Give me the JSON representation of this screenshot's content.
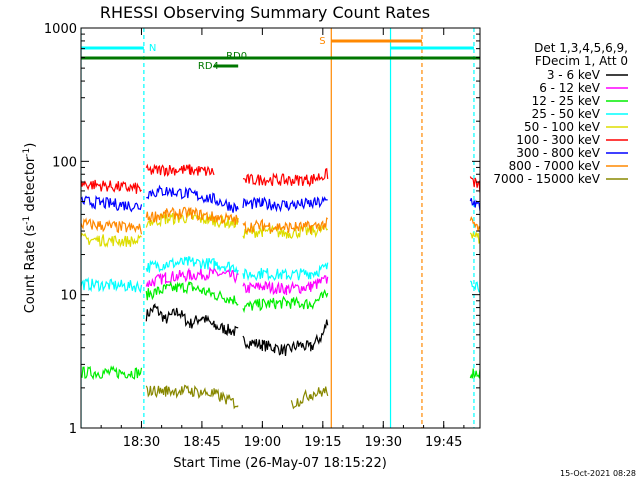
{
  "chart_data": {
    "type": "line",
    "title": "RHESSI Observing Summary Count Rates",
    "xlabel": "Start Time (26-May-07 18:15:22)",
    "ylabel_parts": [
      "Count Rate (s",
      "-1",
      " detector",
      "-1",
      ")"
    ],
    "y_scale": "log",
    "ylim": [
      1,
      1000
    ],
    "xlim_minutes": [
      18.25,
      19.9
    ],
    "x_tick_labels": [
      "18:30",
      "18:45",
      "19:00",
      "19:15",
      "19:30",
      "19:45"
    ],
    "x_ticks_hours": [
      18.5,
      18.75,
      19.0,
      19.25,
      19.5,
      19.75
    ],
    "y_tick_labels": [
      "1",
      "10",
      "100",
      "1000"
    ],
    "y_ticks": [
      1,
      10,
      100,
      1000
    ],
    "legend_header": [
      "Det 1,3,4,5,6,9,",
      "FDecim 1, Att 0"
    ],
    "footer": "15-Oct-2021 08:28",
    "annotations": {
      "night_label": "N",
      "saa_label": "S",
      "rd0_label": "RD0",
      "rd4_label": "RD4"
    },
    "series": [
      {
        "name": "3 - 6 keV",
        "color": "#000000",
        "segments": [
          [
            [
              18.52,
              7
            ],
            [
              18.555,
              8
            ],
            [
              18.6,
              6.5
            ],
            [
              18.65,
              7.5
            ],
            [
              18.7,
              6
            ],
            [
              18.75,
              6.8
            ],
            [
              18.8,
              5.8
            ],
            [
              18.85,
              5.5
            ],
            [
              18.9,
              5.2
            ]
          ],
          [
            [
              18.92,
              4.5
            ],
            [
              19.0,
              4.2
            ],
            [
              19.05,
              4.0
            ],
            [
              19.1,
              3.8
            ],
            [
              19.15,
              4.2
            ],
            [
              19.2,
              4.0
            ],
            [
              19.25,
              5.0
            ],
            [
              19.27,
              6.5
            ]
          ]
        ]
      },
      {
        "name": "6 - 12 keV",
        "color": "#ff00ff",
        "segments": [
          [
            [
              18.52,
              12
            ],
            [
              18.6,
              13.5
            ],
            [
              18.7,
              14
            ],
            [
              18.8,
              14.5
            ],
            [
              18.9,
              13.5
            ]
          ],
          [
            [
              18.92,
              11
            ],
            [
              19.0,
              11.5
            ],
            [
              19.1,
              11
            ],
            [
              19.2,
              11.5
            ],
            [
              19.27,
              13
            ]
          ]
        ]
      },
      {
        "name": "12 - 25 keV",
        "color": "#00ee00",
        "segments": [
          [
            [
              18.25,
              2.6
            ],
            [
              18.5,
              2.6
            ]
          ],
          [
            [
              18.52,
              10
            ],
            [
              18.6,
              11
            ],
            [
              18.7,
              11.5
            ],
            [
              18.8,
              10
            ],
            [
              18.85,
              9.5
            ],
            [
              18.9,
              9
            ]
          ],
          [
            [
              18.92,
              8
            ],
            [
              19.0,
              8.5
            ],
            [
              19.1,
              8.7
            ],
            [
              19.2,
              8.5
            ],
            [
              19.27,
              10
            ]
          ],
          [
            [
              19.86,
              2.6
            ],
            [
              19.9,
              2.6
            ]
          ]
        ]
      },
      {
        "name": "25 - 50 keV",
        "color": "#00ffff",
        "segments": [
          [
            [
              18.25,
              12
            ],
            [
              18.5,
              11.5
            ]
          ],
          [
            [
              18.52,
              16
            ],
            [
              18.6,
              17
            ],
            [
              18.7,
              17.5
            ],
            [
              18.8,
              17
            ],
            [
              18.9,
              16
            ]
          ],
          [
            [
              18.92,
              14
            ],
            [
              19.0,
              14.5
            ],
            [
              19.1,
              14
            ],
            [
              19.2,
              14.5
            ],
            [
              19.27,
              16
            ]
          ],
          [
            [
              19.86,
              13
            ],
            [
              19.9,
              11.5
            ]
          ]
        ]
      },
      {
        "name": "50 - 100 keV",
        "color": "#dddd00",
        "segments": [
          [
            [
              18.25,
              26
            ],
            [
              18.5,
              25
            ]
          ],
          [
            [
              18.52,
              35
            ],
            [
              18.6,
              37
            ],
            [
              18.7,
              38
            ],
            [
              18.8,
              36
            ],
            [
              18.9,
              34
            ]
          ],
          [
            [
              18.92,
              29
            ],
            [
              19.0,
              30
            ],
            [
              19.1,
              29
            ],
            [
              19.2,
              30
            ],
            [
              19.27,
              31
            ]
          ],
          [
            [
              19.86,
              30
            ],
            [
              19.9,
              26
            ]
          ]
        ]
      },
      {
        "name": "100 - 300 keV",
        "color": "#ff0000",
        "segments": [
          [
            [
              18.25,
              68
            ],
            [
              18.5,
              62
            ]
          ],
          [
            [
              18.52,
              84
            ],
            [
              18.6,
              87
            ],
            [
              18.7,
              86
            ],
            [
              18.8,
              83
            ]
          ],
          [
            [
              18.92,
              72
            ],
            [
              19.0,
              73
            ],
            [
              19.1,
              72
            ],
            [
              19.2,
              73
            ],
            [
              19.27,
              80
            ]
          ],
          [
            [
              19.86,
              75
            ],
            [
              19.9,
              63
            ]
          ]
        ]
      },
      {
        "name": "300 - 800 keV",
        "color": "#0000ff",
        "segments": [
          [
            [
              18.25,
              50
            ],
            [
              18.5,
              46
            ]
          ],
          [
            [
              18.52,
              58
            ],
            [
              18.6,
              60
            ],
            [
              18.7,
              57
            ],
            [
              18.8,
              52
            ],
            [
              18.9,
              44
            ]
          ],
          [
            [
              18.92,
              48
            ],
            [
              19.0,
              48
            ],
            [
              19.1,
              47
            ],
            [
              19.2,
              48
            ],
            [
              19.27,
              50
            ]
          ],
          [
            [
              19.86,
              52
            ],
            [
              19.9,
              45
            ]
          ]
        ]
      },
      {
        "name": "800 - 7000 keV",
        "color": "#ff8800",
        "segments": [
          [
            [
              18.25,
              34
            ],
            [
              18.5,
              31
            ]
          ],
          [
            [
              18.52,
              38
            ],
            [
              18.6,
              40
            ],
            [
              18.7,
              41
            ],
            [
              18.8,
              38
            ],
            [
              18.9,
              36
            ]
          ],
          [
            [
              18.92,
              32
            ],
            [
              19.0,
              33
            ],
            [
              19.1,
              32
            ],
            [
              19.2,
              32
            ],
            [
              19.27,
              34
            ]
          ],
          [
            [
              19.86,
              36
            ],
            [
              19.9,
              30
            ]
          ]
        ]
      },
      {
        "name": "7000 - 15000 keV",
        "color": "#888800",
        "segments": [
          [
            [
              18.52,
              1.9
            ],
            [
              18.6,
              1.9
            ],
            [
              18.7,
              1.9
            ],
            [
              18.8,
              1.8
            ],
            [
              18.9,
              1.5
            ]
          ],
          [
            [
              19.12,
              1.5
            ],
            [
              19.2,
              1.8
            ],
            [
              19.27,
              1.9
            ]
          ]
        ]
      }
    ]
  }
}
